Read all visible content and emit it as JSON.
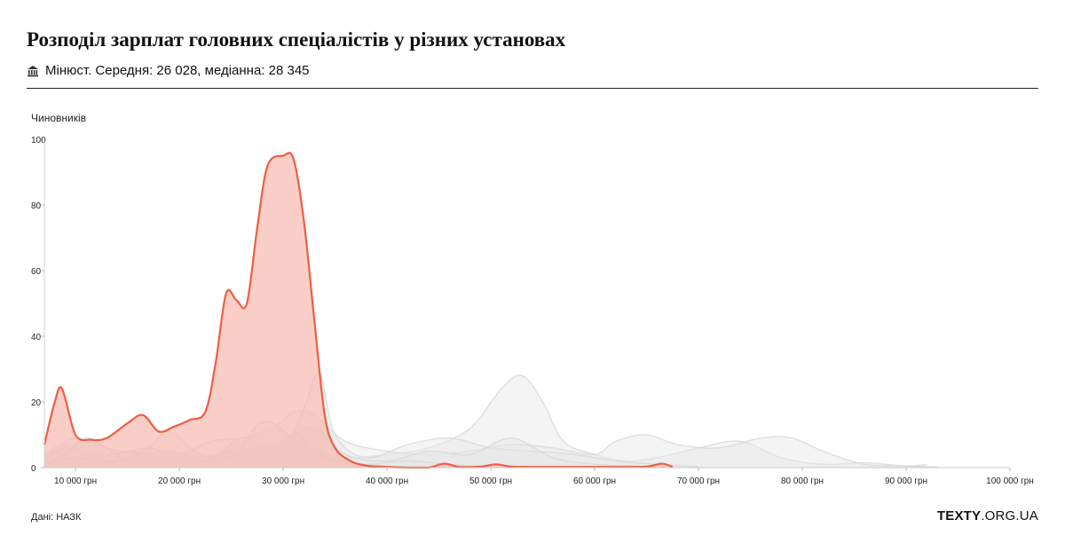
{
  "header": {
    "title": "Розподіл зарплат головних спеціалістів у різних установах",
    "subtitle": "Мінюст. Середня: 26 028, медіанна: 28 345",
    "subtitle_icon": "building-icon"
  },
  "footer": {
    "source": "Дані: НАЗК",
    "brand_bold": "TEXTY",
    "brand_rest": ".ORG.UA"
  },
  "colors": {
    "highlight_line": "#ee5e44",
    "highlight_fill": "#f7b9ae",
    "background_line": "#d8d8d8",
    "background_fill": "#e6e6e6"
  },
  "chart_data": {
    "type": "area",
    "ylabel": "Чиновників",
    "ylim": [
      0,
      100
    ],
    "xlim": [
      7000,
      100000
    ],
    "yticks": [
      0,
      20,
      40,
      60,
      80,
      100
    ],
    "xticks": [
      {
        "value": 10000,
        "label": "10 000 грн"
      },
      {
        "value": 20000,
        "label": "20 000 грн"
      },
      {
        "value": 30000,
        "label": "30 000 грн"
      },
      {
        "value": 40000,
        "label": "40 000 грн"
      },
      {
        "value": 50000,
        "label": "50 000 грн"
      },
      {
        "value": 60000,
        "label": "60 000 грн"
      },
      {
        "value": 70000,
        "label": "70 000 грн"
      },
      {
        "value": 80000,
        "label": "80 000 грн"
      },
      {
        "value": 90000,
        "label": "90 000 грн"
      },
      {
        "value": 100000,
        "label": "100 000 грн"
      }
    ],
    "highlight": {
      "x": [
        7000,
        8000,
        8700,
        10000,
        11500,
        13000,
        15000,
        16500,
        18000,
        19500,
        21000,
        22500,
        23500,
        24500,
        25500,
        26500,
        27500,
        28500,
        30000,
        31000,
        32000,
        33000,
        34000,
        35000,
        36500,
        38000,
        40000,
        42000,
        44000,
        45500,
        47000,
        49000,
        50500,
        52000,
        55000,
        58000,
        61000,
        63000,
        65000,
        66500,
        67500
      ],
      "y": [
        7,
        20,
        24,
        10,
        8.5,
        9,
        13.5,
        16,
        11,
        12.5,
        14.5,
        17,
        32,
        53,
        51,
        50,
        73,
        92,
        95,
        94,
        75,
        45,
        16,
        6,
        2,
        0.6,
        0.2,
        0,
        0,
        1.2,
        0.2,
        0.3,
        1,
        0.3,
        0.2,
        0.2,
        0.2,
        0.2,
        0.3,
        1.2,
        0.2
      ]
    },
    "background_series": [
      {
        "x": [
          7000,
          9000,
          12000,
          15000,
          18000,
          21000,
          24000,
          27000,
          30000,
          33000,
          36000,
          40000,
          44000,
          48000,
          51000,
          53000,
          55000,
          57000,
          60000,
          63000,
          66000,
          70000,
          74000,
          78000,
          82000,
          86000,
          90000,
          92000
        ],
        "y": [
          0.5,
          1.5,
          2,
          3,
          2.5,
          3,
          4,
          5,
          6,
          5,
          3,
          4,
          6,
          12,
          24,
          28,
          20,
          8,
          4,
          2,
          3,
          6,
          8,
          3,
          1,
          1.5,
          0.5,
          1
        ]
      },
      {
        "x": [
          7000,
          9000,
          11000,
          14000,
          17000,
          20000,
          23000,
          26000,
          29000,
          31000,
          33000,
          36000,
          40000,
          44000,
          48000,
          52000,
          56000,
          60000,
          62000,
          65000,
          68000,
          72000,
          76000,
          79000,
          82000,
          86000,
          90000,
          93000
        ],
        "y": [
          3,
          7,
          5,
          4,
          6,
          4,
          8,
          9,
          12,
          17,
          16,
          8,
          5,
          4,
          5,
          7,
          6,
          4,
          8,
          10,
          7,
          6,
          9,
          9,
          5,
          1,
          0.5,
          0.2
        ]
      },
      {
        "x": [
          7000,
          10000,
          13000,
          16000,
          19000,
          22000,
          25000,
          28000,
          30000,
          32000,
          33500,
          35000,
          38000,
          42000,
          46000,
          50000,
          54000,
          58000,
          62000,
          66000,
          70000
        ],
        "y": [
          4,
          9,
          6,
          4,
          5,
          3,
          5,
          6,
          5,
          18,
          29,
          10,
          3,
          7,
          9,
          6,
          5,
          4,
          2,
          1,
          0.3
        ]
      },
      {
        "x": [
          7000,
          9000,
          12000,
          15000,
          18000,
          21000,
          24000,
          27000,
          30000,
          33000,
          36000,
          40000,
          44000,
          48000,
          52000,
          56000,
          60000,
          64000
        ],
        "y": [
          2,
          6,
          3,
          5,
          3,
          2,
          3,
          4,
          8,
          12,
          4,
          2,
          5,
          4,
          9,
          3,
          1,
          0.5
        ]
      },
      {
        "x": [
          7000,
          9000,
          11000,
          13000,
          15000,
          17000,
          19000,
          21000,
          23000,
          26000,
          29000,
          31000,
          33000,
          35000,
          38000,
          42000,
          46000,
          50000
        ],
        "y": [
          1,
          4,
          9,
          6,
          2,
          4,
          5,
          3,
          2,
          9,
          6,
          10,
          6,
          2,
          1,
          2,
          1,
          0.2
        ]
      },
      {
        "x": [
          7000,
          10000,
          14000,
          17000,
          19000,
          22000,
          25000,
          28000,
          31000,
          34000,
          38000,
          42000
        ],
        "y": [
          1,
          3,
          2,
          6,
          11,
          4,
          3,
          14,
          9,
          3,
          1,
          0.2
        ]
      }
    ]
  }
}
